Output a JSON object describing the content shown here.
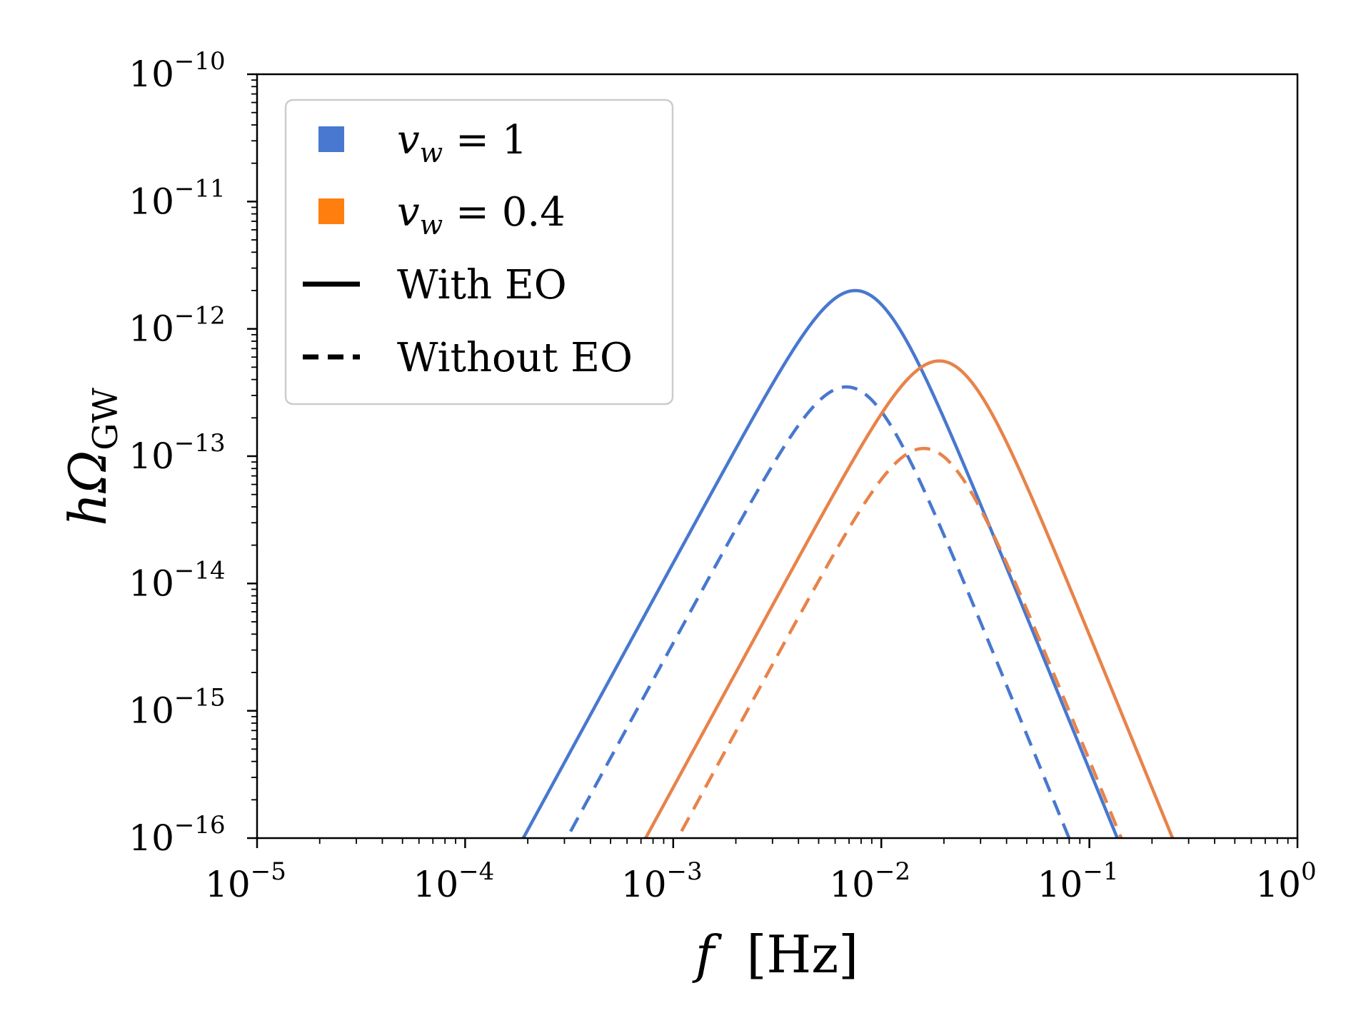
{
  "chart_data": {
    "type": "line",
    "title": "",
    "xlabel": {
      "var": "f",
      "unit": "[Hz]"
    },
    "ylabel": {
      "var": "hΩ",
      "sub": "GW"
    },
    "xscale": "log",
    "yscale": "log",
    "xlim": [
      1e-05,
      1
    ],
    "ylim": [
      1e-16,
      1e-10
    ],
    "grid": false,
    "legend_position": "top-left",
    "x_ticks": [
      {
        "base": "10",
        "exp": "−5",
        "value": -5
      },
      {
        "base": "10",
        "exp": "−4",
        "value": -4
      },
      {
        "base": "10",
        "exp": "−3",
        "value": -3
      },
      {
        "base": "10",
        "exp": "−2",
        "value": -2
      },
      {
        "base": "10",
        "exp": "−1",
        "value": -1
      },
      {
        "base": "10",
        "exp": "0",
        "value": 0
      }
    ],
    "y_ticks": [
      {
        "base": "10",
        "exp": "−10",
        "value": -10
      },
      {
        "base": "10",
        "exp": "−11",
        "value": -11
      },
      {
        "base": "10",
        "exp": "−12",
        "value": -12
      },
      {
        "base": "10",
        "exp": "−13",
        "value": -13
      },
      {
        "base": "10",
        "exp": "−14",
        "value": -14
      },
      {
        "base": "10",
        "exp": "−15",
        "value": -15
      },
      {
        "base": "10",
        "exp": "−16",
        "value": -16
      }
    ],
    "legend": [
      {
        "kind": "patch",
        "color": "#4878CF",
        "var": "v",
        "sub": "w",
        "rest": " = 1"
      },
      {
        "kind": "patch",
        "color": "#FF7F0E",
        "var": "v",
        "sub": "w",
        "rest": " = 0.4"
      },
      {
        "kind": "solid",
        "label": "With EO"
      },
      {
        "kind": "dashed",
        "label": "Without EO"
      }
    ],
    "series": [
      {
        "name": "v_w = 1, With EO",
        "color": "#4878CF",
        "dash": "solid",
        "peak_f": 0.0075,
        "peak_h": 2e-12,
        "low_slope": 3.0,
        "high_slope": 4.0,
        "sharpness": 2.0
      },
      {
        "name": "v_w = 1, Without EO",
        "color": "#4878CF",
        "dash": "dashed",
        "peak_f": 0.0068,
        "peak_h": 3.5e-13,
        "low_slope": 3.0,
        "high_slope": 4.0,
        "sharpness": 2.0
      },
      {
        "name": "v_w = 0.4, With EO",
        "color": "#E8834A",
        "dash": "solid",
        "peak_f": 0.019,
        "peak_h": 5.6e-13,
        "low_slope": 3.0,
        "high_slope": 4.0,
        "sharpness": 2.0
      },
      {
        "name": "v_w = 0.4, Without EO",
        "color": "#E8834A",
        "dash": "dashed",
        "peak_f": 0.016,
        "peak_h": 1.15e-13,
        "low_slope": 3.0,
        "high_slope": 4.0,
        "sharpness": 2.0
      }
    ]
  }
}
